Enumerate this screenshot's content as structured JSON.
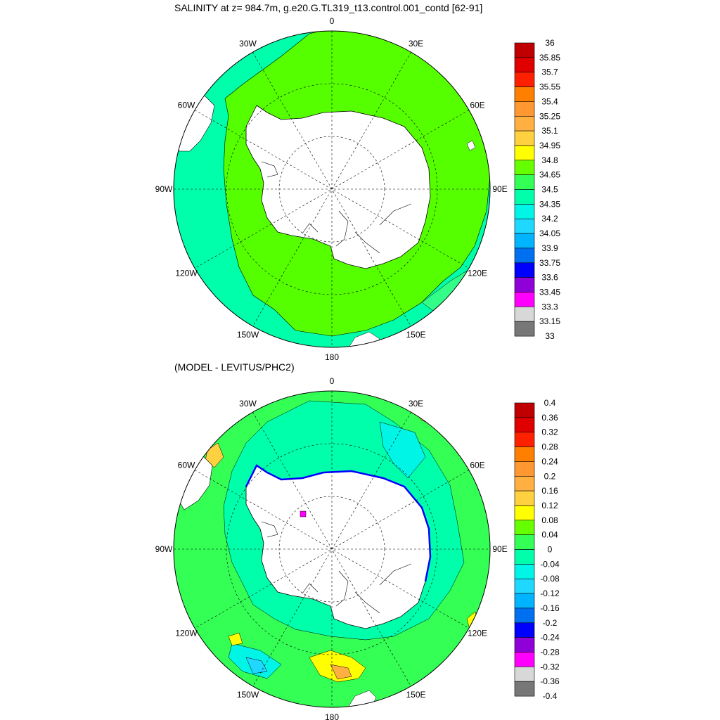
{
  "titles": {
    "top": "SALINITY at z= 984.7m, g.e20.G.TL319_t13.control.001_contd [62-91]",
    "bottom": "(MODEL - LEVITUS/PHC2)"
  },
  "meridian_labels": [
    "0",
    "30E",
    "60E",
    "90E",
    "120E",
    "150E",
    "180",
    "150W",
    "120W",
    "90W",
    "60W",
    "30W"
  ],
  "colorbars": {
    "top": {
      "labels": [
        "36",
        "35.85",
        "35.7",
        "35.55",
        "35.4",
        "35.25",
        "35.1",
        "34.95",
        "34.8",
        "34.65",
        "34.5",
        "34.35",
        "34.2",
        "34.05",
        "33.9",
        "33.75",
        "33.6",
        "33.45",
        "33.3",
        "33.15",
        "33"
      ],
      "colors": [
        "#c00000",
        "#e00000",
        "#ff2000",
        "#ff8000",
        "#ff9830",
        "#ffb040",
        "#ffd040",
        "#ffff00",
        "#66ff00",
        "#33ff55",
        "#00ffaa",
        "#00f5e6",
        "#20d8ff",
        "#00b4ff",
        "#0070f0",
        "#0000ff",
        "#9000d8",
        "#ff00ff",
        "#d8d8d8",
        "#777777"
      ]
    },
    "bottom": {
      "labels": [
        "0.4",
        "0.36",
        "0.32",
        "0.28",
        "0.24",
        "0.2",
        "0.16",
        "0.12",
        "0.08",
        "0.04",
        "0",
        "-0.04",
        "-0.08",
        "-0.12",
        "-0.16",
        "-0.2",
        "-0.24",
        "-0.28",
        "-0.32",
        "-0.36",
        "-0.4"
      ],
      "colors": [
        "#c00000",
        "#e00000",
        "#ff2000",
        "#ff8000",
        "#ff9830",
        "#ffb040",
        "#ffd040",
        "#ffff00",
        "#66ff00",
        "#33ff55",
        "#00ffaa",
        "#00f5e6",
        "#20d8ff",
        "#00b4ff",
        "#0070f0",
        "#0000ff",
        "#9000d8",
        "#ff00ff",
        "#d8d8d8",
        "#777777"
      ]
    }
  }
}
